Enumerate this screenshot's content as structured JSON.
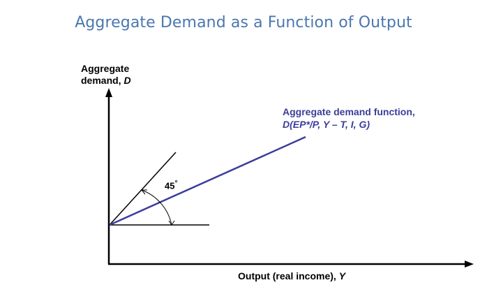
{
  "title": "Aggregate Demand as a Function of Output",
  "y_axis": {
    "line1": "Aggregate",
    "line2_text": "demand, ",
    "line2_symbol": "D"
  },
  "x_axis": {
    "text": "Output (real income), ",
    "symbol": "Y"
  },
  "angle": {
    "value": "45",
    "unit": "°"
  },
  "function_label": {
    "line1": "Aggregate demand function,",
    "line2": "D(EP*/P, Y – T, I, G)"
  },
  "colors": {
    "title": "#4a77b0",
    "demand_line": "#3b3d99",
    "axes": "#000000"
  }
}
